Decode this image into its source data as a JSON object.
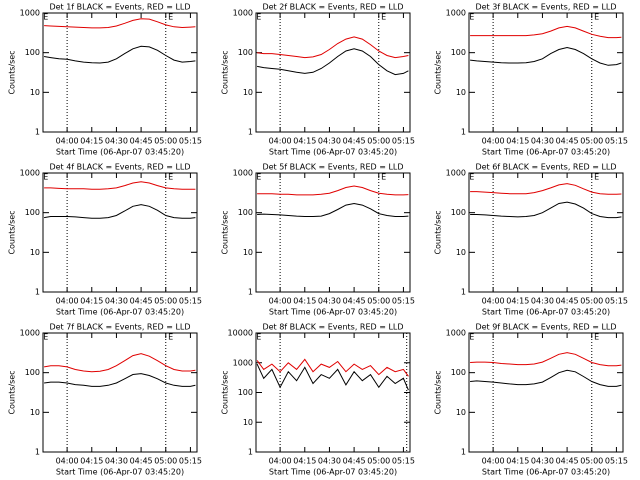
{
  "chart_data": [
    {
      "type": "line",
      "title": "Det 1f BLACK = Events, RED = LLD",
      "xlabel": "Start Time (06-Apr-07 03:45:20)",
      "ylabel": "Counts/sec",
      "log_y": true,
      "xlim": [
        "03:45:20",
        "05:19:00"
      ],
      "xticks": [
        "04:00",
        "04:15",
        "04:30",
        "04:45",
        "05:00",
        "05:15"
      ],
      "ylim": [
        1,
        1000
      ],
      "yticks": [
        1,
        10,
        100,
        1000
      ],
      "vlines": [
        "04:00",
        "05:00"
      ],
      "annotations": [
        {
          "text": "E",
          "x": "03:47"
        },
        {
          "text": "E",
          "x": "05:03"
        }
      ],
      "x": [
        "03:46",
        "03:50",
        "03:55",
        "04:00",
        "04:05",
        "04:10",
        "04:15",
        "04:20",
        "04:25",
        "04:30",
        "04:35",
        "04:40",
        "04:45",
        "04:50",
        "04:55",
        "05:00",
        "05:05",
        "05:10",
        "05:15",
        "05:18"
      ],
      "series": [
        {
          "name": "Events",
          "color": "#000000",
          "values": [
            80,
            75,
            70,
            68,
            62,
            58,
            56,
            55,
            58,
            70,
            95,
            125,
            145,
            140,
            115,
            85,
            65,
            58,
            60,
            62
          ]
        },
        {
          "name": "LLD",
          "color": "#e00000",
          "values": [
            480,
            470,
            460,
            450,
            440,
            430,
            420,
            420,
            430,
            470,
            550,
            650,
            720,
            700,
            600,
            500,
            450,
            430,
            440,
            450
          ]
        }
      ]
    },
    {
      "type": "line",
      "title": "Det 2f BLACK = Events, RED = LLD",
      "xlabel": "Start Time (06-Apr-07 03:45:20)",
      "ylabel": "Counts/sec",
      "log_y": true,
      "xlim": [
        "03:45:20",
        "05:19:00"
      ],
      "xticks": [
        "04:00",
        "04:15",
        "04:30",
        "04:45",
        "05:00",
        "05:15"
      ],
      "ylim": [
        1,
        1000
      ],
      "yticks": [
        1,
        10,
        100,
        1000
      ],
      "vlines": [
        "04:00",
        "05:00"
      ],
      "annotations": [
        {
          "text": "E",
          "x": "03:47"
        },
        {
          "text": "E",
          "x": "05:03"
        }
      ],
      "x": [
        "03:46",
        "03:50",
        "03:55",
        "04:00",
        "04:05",
        "04:10",
        "04:15",
        "04:20",
        "04:25",
        "04:30",
        "04:35",
        "04:40",
        "04:45",
        "04:50",
        "04:55",
        "05:00",
        "05:05",
        "05:10",
        "05:15",
        "05:18"
      ],
      "series": [
        {
          "name": "Events",
          "color": "#000000",
          "values": [
            45,
            42,
            40,
            38,
            35,
            32,
            30,
            32,
            40,
            55,
            80,
            110,
            125,
            110,
            80,
            50,
            35,
            28,
            30,
            35
          ]
        },
        {
          "name": "LLD",
          "color": "#e00000",
          "values": [
            100,
            95,
            95,
            90,
            85,
            80,
            75,
            78,
            90,
            120,
            170,
            220,
            250,
            220,
            160,
            110,
            85,
            75,
            80,
            85
          ]
        }
      ]
    },
    {
      "type": "line",
      "title": "Det 3f BLACK = Events, RED = LLD",
      "xlabel": "Start Time (06-Apr-07 03:45:20)",
      "ylabel": "Counts/sec",
      "log_y": true,
      "xlim": [
        "03:45:20",
        "05:19:00"
      ],
      "xticks": [
        "04:00",
        "04:15",
        "04:30",
        "04:45",
        "05:00",
        "05:15"
      ],
      "ylim": [
        1,
        1000
      ],
      "yticks": [
        1,
        10,
        100,
        1000
      ],
      "vlines": [
        "04:00",
        "05:00"
      ],
      "annotations": [
        {
          "text": "E",
          "x": "03:47"
        },
        {
          "text": "E",
          "x": "05:03"
        }
      ],
      "x": [
        "03:46",
        "03:50",
        "03:55",
        "04:00",
        "04:05",
        "04:10",
        "04:15",
        "04:20",
        "04:25",
        "04:30",
        "04:35",
        "04:40",
        "04:45",
        "04:50",
        "04:55",
        "05:00",
        "05:05",
        "05:10",
        "05:15",
        "05:18"
      ],
      "series": [
        {
          "name": "Events",
          "color": "#000000",
          "values": [
            65,
            62,
            60,
            58,
            56,
            55,
            55,
            56,
            60,
            70,
            95,
            120,
            135,
            120,
            95,
            70,
            55,
            48,
            50,
            55
          ]
        },
        {
          "name": "LLD",
          "color": "#e00000",
          "values": [
            270,
            270,
            270,
            270,
            270,
            270,
            270,
            270,
            280,
            300,
            350,
            420,
            460,
            420,
            350,
            290,
            260,
            240,
            240,
            245
          ]
        }
      ]
    },
    {
      "type": "line",
      "title": "Det 4f BLACK = Events, RED = LLD",
      "xlabel": "Start Time (06-Apr-07 03:45:20)",
      "ylabel": "Counts/sec",
      "log_y": true,
      "xlim": [
        "03:45:20",
        "05:19:00"
      ],
      "xticks": [
        "04:00",
        "04:15",
        "04:30",
        "04:45",
        "05:00",
        "05:15"
      ],
      "ylim": [
        1,
        1000
      ],
      "yticks": [
        1,
        10,
        100,
        1000
      ],
      "vlines": [
        "04:00",
        "05:00"
      ],
      "annotations": [
        {
          "text": "E",
          "x": "03:47"
        },
        {
          "text": "E",
          "x": "05:03"
        }
      ],
      "x": [
        "03:46",
        "03:50",
        "03:55",
        "04:00",
        "04:05",
        "04:10",
        "04:15",
        "04:20",
        "04:25",
        "04:30",
        "04:35",
        "04:40",
        "04:45",
        "04:50",
        "04:55",
        "05:00",
        "05:05",
        "05:10",
        "05:15",
        "05:18"
      ],
      "series": [
        {
          "name": "Events",
          "color": "#000000",
          "values": [
            75,
            80,
            80,
            80,
            78,
            75,
            72,
            72,
            75,
            85,
            110,
            145,
            160,
            145,
            115,
            85,
            75,
            72,
            72,
            75
          ]
        },
        {
          "name": "LLD",
          "color": "#e00000",
          "values": [
            420,
            420,
            410,
            400,
            400,
            400,
            390,
            390,
            400,
            420,
            480,
            560,
            600,
            560,
            480,
            420,
            400,
            390,
            390,
            390
          ]
        }
      ]
    },
    {
      "type": "line",
      "title": "Det 5f BLACK = Events, RED = LLD",
      "xlabel": "Start Time (06-Apr-07 03:45:20)",
      "ylabel": "Counts/sec",
      "log_y": true,
      "xlim": [
        "03:45:20",
        "05:19:00"
      ],
      "xticks": [
        "04:00",
        "04:15",
        "04:30",
        "04:45",
        "05:00",
        "05:15"
      ],
      "ylim": [
        1,
        1000
      ],
      "yticks": [
        1,
        10,
        100,
        1000
      ],
      "vlines": [
        "04:00",
        "05:00"
      ],
      "annotations": [
        {
          "text": "E",
          "x": "03:47"
        },
        {
          "text": "E",
          "x": "05:03"
        }
      ],
      "x": [
        "03:46",
        "03:50",
        "03:55",
        "04:00",
        "04:05",
        "04:10",
        "04:15",
        "04:20",
        "04:25",
        "04:30",
        "04:35",
        "04:40",
        "04:45",
        "04:50",
        "04:55",
        "05:00",
        "05:05",
        "05:10",
        "05:15",
        "05:18"
      ],
      "series": [
        {
          "name": "Events",
          "color": "#000000",
          "values": [
            90,
            92,
            90,
            88,
            85,
            82,
            80,
            80,
            82,
            95,
            120,
            155,
            170,
            155,
            125,
            95,
            85,
            80,
            80,
            82
          ]
        },
        {
          "name": "LLD",
          "color": "#e00000",
          "values": [
            300,
            300,
            300,
            290,
            290,
            280,
            280,
            280,
            290,
            310,
            360,
            430,
            470,
            430,
            360,
            310,
            290,
            280,
            280,
            285
          ]
        }
      ]
    },
    {
      "type": "line",
      "title": "Det 6f BLACK = Events, RED = LLD",
      "xlabel": "Start Time (06-Apr-07 03:45:20)",
      "ylabel": "Counts/sec",
      "log_y": true,
      "xlim": [
        "03:45:20",
        "05:19:00"
      ],
      "xticks": [
        "04:00",
        "04:15",
        "04:30",
        "04:45",
        "05:00",
        "05:15"
      ],
      "ylim": [
        1,
        1000
      ],
      "yticks": [
        1,
        10,
        100,
        1000
      ],
      "vlines": [
        "04:00",
        "05:00"
      ],
      "annotations": [
        {
          "text": "E",
          "x": "03:47"
        },
        {
          "text": "E",
          "x": "05:03"
        }
      ],
      "x": [
        "03:46",
        "03:50",
        "03:55",
        "04:00",
        "04:05",
        "04:10",
        "04:15",
        "04:20",
        "04:25",
        "04:30",
        "04:35",
        "04:40",
        "04:45",
        "04:50",
        "04:55",
        "05:00",
        "05:05",
        "05:10",
        "05:15",
        "05:18"
      ],
      "series": [
        {
          "name": "Events",
          "color": "#000000",
          "values": [
            90,
            90,
            88,
            85,
            82,
            80,
            78,
            80,
            85,
            100,
            130,
            170,
            185,
            165,
            130,
            95,
            80,
            75,
            75,
            78
          ]
        },
        {
          "name": "LLD",
          "color": "#e00000",
          "values": [
            340,
            340,
            330,
            320,
            310,
            300,
            300,
            300,
            320,
            360,
            420,
            500,
            540,
            490,
            400,
            330,
            300,
            290,
            290,
            295
          ]
        }
      ]
    },
    {
      "type": "line",
      "title": "Det 7f BLACK = Events, RED = LLD",
      "xlabel": "Start Time (06-Apr-07 03:45:20)",
      "ylabel": "Counts/sec",
      "log_y": true,
      "xlim": [
        "03:45:20",
        "05:19:00"
      ],
      "xticks": [
        "04:00",
        "04:15",
        "04:30",
        "04:45",
        "05:00",
        "05:15"
      ],
      "ylim": [
        1,
        1000
      ],
      "yticks": [
        1,
        10,
        100,
        1000
      ],
      "vlines": [
        "04:00",
        "05:00"
      ],
      "annotations": [
        {
          "text": "E",
          "x": "03:47"
        },
        {
          "text": "E",
          "x": "05:03"
        }
      ],
      "x": [
        "03:46",
        "03:50",
        "03:55",
        "04:00",
        "04:05",
        "04:10",
        "04:15",
        "04:20",
        "04:25",
        "04:30",
        "04:35",
        "04:40",
        "04:45",
        "04:50",
        "04:55",
        "05:00",
        "05:05",
        "05:10",
        "05:15",
        "05:18"
      ],
      "series": [
        {
          "name": "Events",
          "color": "#000000",
          "values": [
            55,
            58,
            58,
            55,
            50,
            48,
            45,
            45,
            48,
            55,
            70,
            90,
            95,
            85,
            70,
            55,
            48,
            45,
            45,
            48
          ]
        },
        {
          "name": "LLD",
          "color": "#e00000",
          "values": [
            140,
            150,
            150,
            140,
            120,
            110,
            105,
            108,
            120,
            150,
            200,
            270,
            300,
            260,
            200,
            150,
            120,
            110,
            110,
            115
          ]
        }
      ]
    },
    {
      "type": "line",
      "title": "Det 8f BLACK = Events, RED = LLD",
      "xlabel": "Start Time (06-Apr-07 03:45:20)",
      "ylabel": "Counts/sec",
      "log_y": true,
      "xlim": [
        "03:45:20",
        "05:19:00"
      ],
      "xticks": [
        "04:00",
        "04:15",
        "04:30",
        "04:45",
        "05:00",
        "05:15"
      ],
      "ylim": [
        1,
        10000
      ],
      "yticks": [
        1,
        10,
        100,
        1000,
        10000
      ],
      "vlines": [
        "04:00",
        "05:17"
      ],
      "annotations": [
        {
          "text": "E",
          "x": "03:47"
        }
      ],
      "x": [
        "03:46",
        "03:50",
        "03:55",
        "04:00",
        "04:05",
        "04:10",
        "04:15",
        "04:20",
        "04:25",
        "04:30",
        "04:35",
        "04:40",
        "04:45",
        "04:50",
        "04:55",
        "05:00",
        "05:05",
        "05:10",
        "05:15",
        "05:18"
      ],
      "series": [
        {
          "name": "Events",
          "color": "#000000",
          "values": [
            900,
            300,
            600,
            150,
            500,
            250,
            700,
            200,
            400,
            300,
            600,
            180,
            500,
            250,
            400,
            150,
            350,
            200,
            300,
            120
          ]
        },
        {
          "name": "LLD",
          "color": "#e00000",
          "values": [
            1200,
            600,
            900,
            500,
            1000,
            600,
            1300,
            500,
            900,
            700,
            1100,
            500,
            900,
            600,
            800,
            400,
            700,
            500,
            600,
            350
          ]
        }
      ]
    },
    {
      "type": "line",
      "title": "Det 9f BLACK = Events, RED = LLD",
      "xlabel": "Start Time (06-Apr-07 03:45:20)",
      "ylabel": "Counts/sec",
      "log_y": true,
      "xlim": [
        "03:45:20",
        "05:19:00"
      ],
      "xticks": [
        "04:00",
        "04:15",
        "04:30",
        "04:45",
        "05:00",
        "05:15"
      ],
      "ylim": [
        1,
        1000
      ],
      "yticks": [
        1,
        10,
        100,
        1000
      ],
      "vlines": [
        "04:00",
        "05:00"
      ],
      "annotations": [
        {
          "text": "E",
          "x": "03:47"
        },
        {
          "text": "E",
          "x": "05:03"
        }
      ],
      "x": [
        "03:46",
        "03:50",
        "03:55",
        "04:00",
        "04:05",
        "04:10",
        "04:15",
        "04:20",
        "04:25",
        "04:30",
        "04:35",
        "04:40",
        "04:45",
        "04:50",
        "04:55",
        "05:00",
        "05:05",
        "05:10",
        "05:15",
        "05:18"
      ],
      "series": [
        {
          "name": "Events",
          "color": "#000000",
          "values": [
            60,
            62,
            60,
            58,
            55,
            52,
            50,
            50,
            52,
            58,
            75,
            100,
            115,
            105,
            80,
            60,
            50,
            45,
            45,
            48
          ]
        },
        {
          "name": "LLD",
          "color": "#e00000",
          "values": [
            180,
            185,
            185,
            180,
            170,
            165,
            160,
            160,
            165,
            185,
            230,
            290,
            320,
            290,
            230,
            180,
            160,
            150,
            150,
            155
          ]
        }
      ]
    }
  ]
}
